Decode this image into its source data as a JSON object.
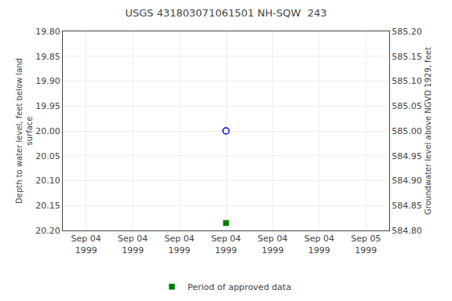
{
  "chart_data": {
    "type": "scatter",
    "title": "USGS 431803071061501 NH-SQW  243",
    "y_label": "Depth to water level, feet below land\nsurface",
    "y2_label": "Groundwater level above NGVD 1929, feet",
    "categories": [
      "Sep 04\n1999",
      "Sep 04\n1999",
      "Sep 04\n1999",
      "Sep 04\n1999",
      "Sep 04\n1999",
      "Sep 04\n1999",
      "Sep 05\n1999"
    ],
    "series": [
      {
        "values": [
          null,
          null,
          null,
          20.0,
          null,
          null,
          null
        ],
        "color": "#0000cc",
        "marker": "circle-open"
      },
      {
        "name": "Period of approved data",
        "values": [
          null,
          null,
          null,
          20.185,
          null,
          null,
          null
        ],
        "color": "#008000",
        "marker": "square"
      }
    ],
    "ylim": [
      20.2,
      19.8
    ],
    "yticks": [
      {
        "value": 19.8,
        "label": "19.80"
      },
      {
        "value": 19.85,
        "label": "19.85"
      },
      {
        "value": 19.9,
        "label": "19.90"
      },
      {
        "value": 19.95,
        "label": "19.95"
      },
      {
        "value": 20.0,
        "label": "20.00"
      },
      {
        "value": 20.05,
        "label": "20.05"
      },
      {
        "value": 20.1,
        "label": "20.10"
      },
      {
        "value": 20.15,
        "label": "20.15"
      },
      {
        "value": 20.2,
        "label": "20.20"
      }
    ],
    "y2lim": [
      584.8,
      585.2
    ],
    "y2ticks": [
      {
        "value": 585.2,
        "label": "585.20"
      },
      {
        "value": 585.15,
        "label": "585.15"
      },
      {
        "value": 585.1,
        "label": "585.10"
      },
      {
        "value": 585.05,
        "label": "585.05"
      },
      {
        "value": 585.0,
        "label": "585.00"
      },
      {
        "value": 584.95,
        "label": "584.95"
      },
      {
        "value": 584.9,
        "label": "584.90"
      },
      {
        "value": 584.85,
        "label": "584.85"
      },
      {
        "value": 584.8,
        "label": "584.80"
      }
    ],
    "grid": true,
    "legend": "bottom"
  }
}
